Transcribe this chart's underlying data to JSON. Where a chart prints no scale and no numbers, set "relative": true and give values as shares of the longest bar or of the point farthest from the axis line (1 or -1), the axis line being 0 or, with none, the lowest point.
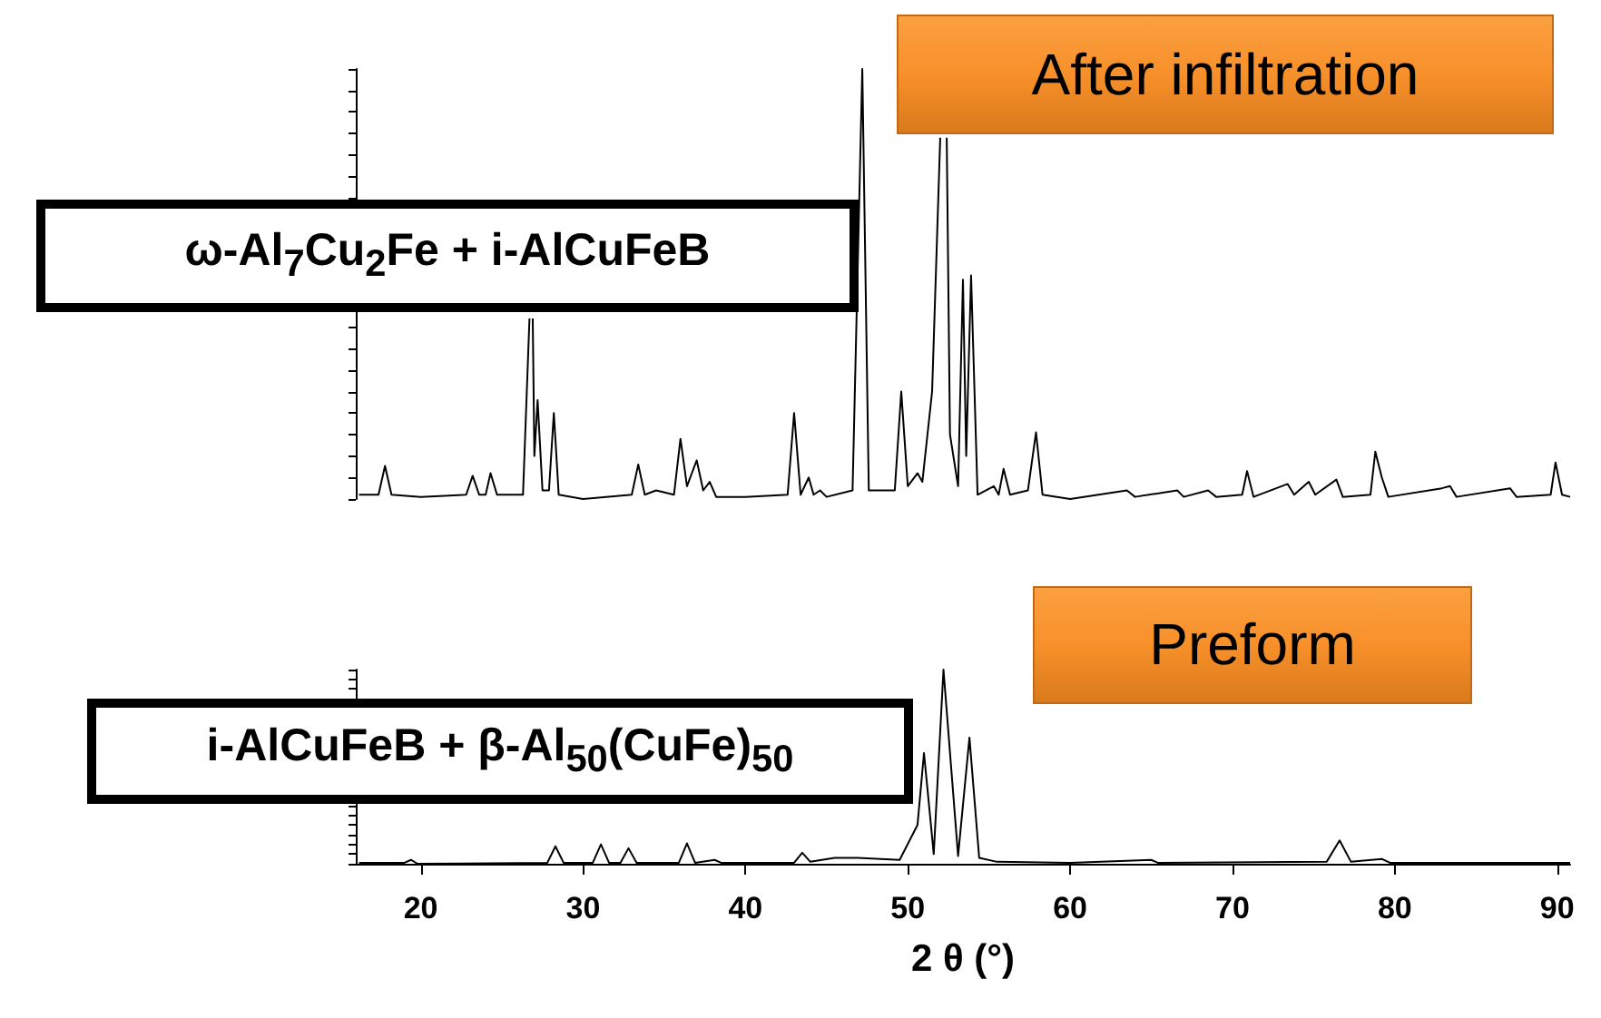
{
  "chart_data": [
    {
      "type": "line",
      "relative": true,
      "color": "#000000",
      "tick_labels": false,
      "xticks": [
        20,
        30,
        40,
        50,
        60,
        70,
        80,
        90
      ],
      "annotations": [
        "After infiltration",
        "ω-Al$_{7}$Cu$_{2}$Fe + i-AlCuFeB"
      ],
      "x": [
        16.2,
        17.4,
        17.8,
        18.2,
        20,
        22.8,
        23.2,
        23.6,
        24.0,
        24.3,
        24.7,
        26.3,
        26.7,
        26.8,
        26.9,
        27.0,
        27.2,
        27.5,
        27.9,
        28.2,
        28.5,
        30,
        33.0,
        33.4,
        33.8,
        34.5,
        35.6,
        36.0,
        36.4,
        37.0,
        37.4,
        37.8,
        38.2,
        40,
        42.6,
        43.0,
        43.4,
        43.9,
        44.2,
        44.6,
        45,
        46.6,
        47.2,
        47.6,
        49.2,
        49.6,
        50.0,
        50.6,
        50.9,
        51.5,
        52.0,
        52.2,
        52.4,
        52.6,
        53.1,
        53.4,
        53.6,
        53.9,
        54.3,
        55.3,
        55.6,
        55.9,
        56.3,
        57.4,
        57.9,
        58.3,
        60,
        63.5,
        64,
        66.6,
        67,
        68.5,
        69,
        70.6,
        70.9,
        71.3,
        73.4,
        73.8,
        74.7,
        75.1,
        76.4,
        76.8,
        78.5,
        78.8,
        79.2,
        79.6,
        82.9,
        83.4,
        83.8,
        87.1,
        87.5,
        89.6,
        89.9,
        90.3,
        90.8
      ],
      "values": [
        0.01,
        0.01,
        0.077,
        0.01,
        0.005,
        0.01,
        0.054,
        0.01,
        0.01,
        0.06,
        0.01,
        0.01,
        0.42,
        null,
        0.42,
        0.1,
        0.23,
        0.02,
        0.02,
        0.2,
        0.01,
        0,
        0.01,
        0.08,
        0.01,
        0.02,
        0.01,
        0.14,
        0.03,
        0.09,
        0.02,
        0.04,
        0.005,
        0.005,
        0.01,
        0.2,
        0.01,
        0.05,
        0.01,
        0.02,
        0.005,
        0.02,
        1.0,
        0.02,
        0.02,
        0.25,
        0.03,
        0.06,
        0.04,
        0.25,
        0.84,
        null,
        0.84,
        0.15,
        0.03,
        0.51,
        0.1,
        0.52,
        0.01,
        0.03,
        0.01,
        0.07,
        0.01,
        0.02,
        0.155,
        0.01,
        0,
        0.02,
        0.005,
        0.02,
        0.005,
        0.02,
        0.005,
        0.01,
        0.065,
        0.005,
        0.035,
        0.01,
        0.04,
        0.01,
        0.045,
        0.005,
        0.01,
        0.11,
        0.05,
        0.005,
        0.025,
        0.03,
        0.005,
        0.025,
        0.005,
        0.01,
        0.085,
        0.01,
        0.005
      ]
    },
    {
      "type": "line",
      "relative": true,
      "color": "#000000",
      "tick_labels": "x",
      "xlim": [
        16,
        90.8
      ],
      "xticks": [
        20,
        30,
        40,
        50,
        60,
        70,
        80,
        90
      ],
      "xlabel": "2 θ (°)",
      "annotations": [
        "Preform",
        "i-AlCuFeB + β-Al$_{50}$(CuFe)$_{50}$"
      ],
      "x": [
        16.2,
        19.0,
        19.4,
        19.8,
        27.8,
        28.3,
        28.8,
        30.6,
        31.1,
        31.6,
        32.3,
        32.8,
        33.3,
        35.9,
        36.4,
        36.9,
        38.1,
        38.5,
        43.0,
        43.5,
        44.0,
        45.5,
        46.9,
        49.5,
        50.6,
        51.0,
        51.6,
        52.2,
        53.1,
        53.8,
        54.4,
        55.5,
        60,
        65.0,
        65.4,
        75.8,
        76.6,
        77.3,
        79.2,
        79.7,
        90.8
      ],
      "values": [
        0.005,
        0.005,
        0.02,
        0,
        0.005,
        0.09,
        0.005,
        0.005,
        0.1,
        0.005,
        0.005,
        0.08,
        0.005,
        0.005,
        0.105,
        0.005,
        0.02,
        0.005,
        0.005,
        0.057,
        0.01,
        0.03,
        0.03,
        0.02,
        0.2,
        0.57,
        0.05,
        1.0,
        0.04,
        0.65,
        0.03,
        0.01,
        0.005,
        0.02,
        0.005,
        0.01,
        0.12,
        0.01,
        0.025,
        0.005,
        0.005
      ]
    }
  ]
}
